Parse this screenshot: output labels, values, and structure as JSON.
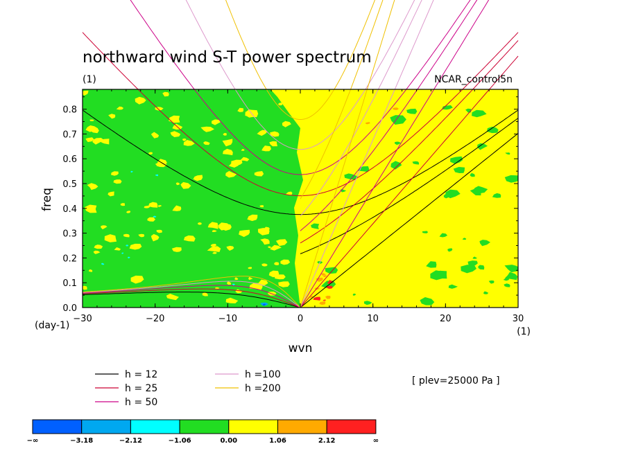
{
  "chart_data": {
    "type": "heatmap",
    "title": "northward wind S-T power spectrum",
    "subtitle_left": "(1)",
    "subtitle_right": "NCAR_control5n",
    "xlabel": "wvn",
    "ylabel": "freq",
    "x_unit_label": "(1)",
    "y_unit_label": "(day-1)",
    "xlim": [
      -30,
      30
    ],
    "ylim": [
      0,
      0.88
    ],
    "x_ticks": [
      -30,
      -20,
      -10,
      0,
      10,
      20,
      30
    ],
    "x_tick_labels": [
      "−30",
      "−20",
      "−10",
      "0",
      "10",
      "20",
      "30"
    ],
    "y_ticks": [
      0.0,
      0.1,
      0.2,
      0.3,
      0.4,
      0.5,
      0.6,
      0.7,
      0.8
    ],
    "y_tick_labels": [
      "0.0",
      "0.1",
      "0.2",
      "0.3",
      "0.4",
      "0.5",
      "0.6",
      "0.7",
      "0.8"
    ],
    "field_description": {
      "negative_wavenumbers": "mostly -1.06 to 0.00 (green)",
      "positive_wavenumbers": "mostly 0.00 to 1.06 (yellow)"
    },
    "dispersion_curves": [
      {
        "label": "h = 12",
        "h": 12,
        "color": "#000000"
      },
      {
        "label": "h = 25",
        "h": 25,
        "color": "#cc0033"
      },
      {
        "label": "h = 50",
        "h": 50,
        "color": "#cc0088"
      },
      {
        "label": "h =100",
        "h": 100,
        "color": "#dd99cc"
      },
      {
        "label": "h =200",
        "h": 200,
        "color": "#f0c000"
      }
    ],
    "annotation": "[ plev=25000 Pa ]",
    "colorbar": {
      "levels": [
        "−∞",
        "−3.18",
        "−2.12",
        "−1.06",
        "0.00",
        "1.06",
        "2.12",
        "∞"
      ],
      "colors": [
        "#0060ff",
        "#00a8f0",
        "#00ffff",
        "#22dd22",
        "#ffff00",
        "#ffaa00",
        "#ff2020"
      ]
    }
  }
}
